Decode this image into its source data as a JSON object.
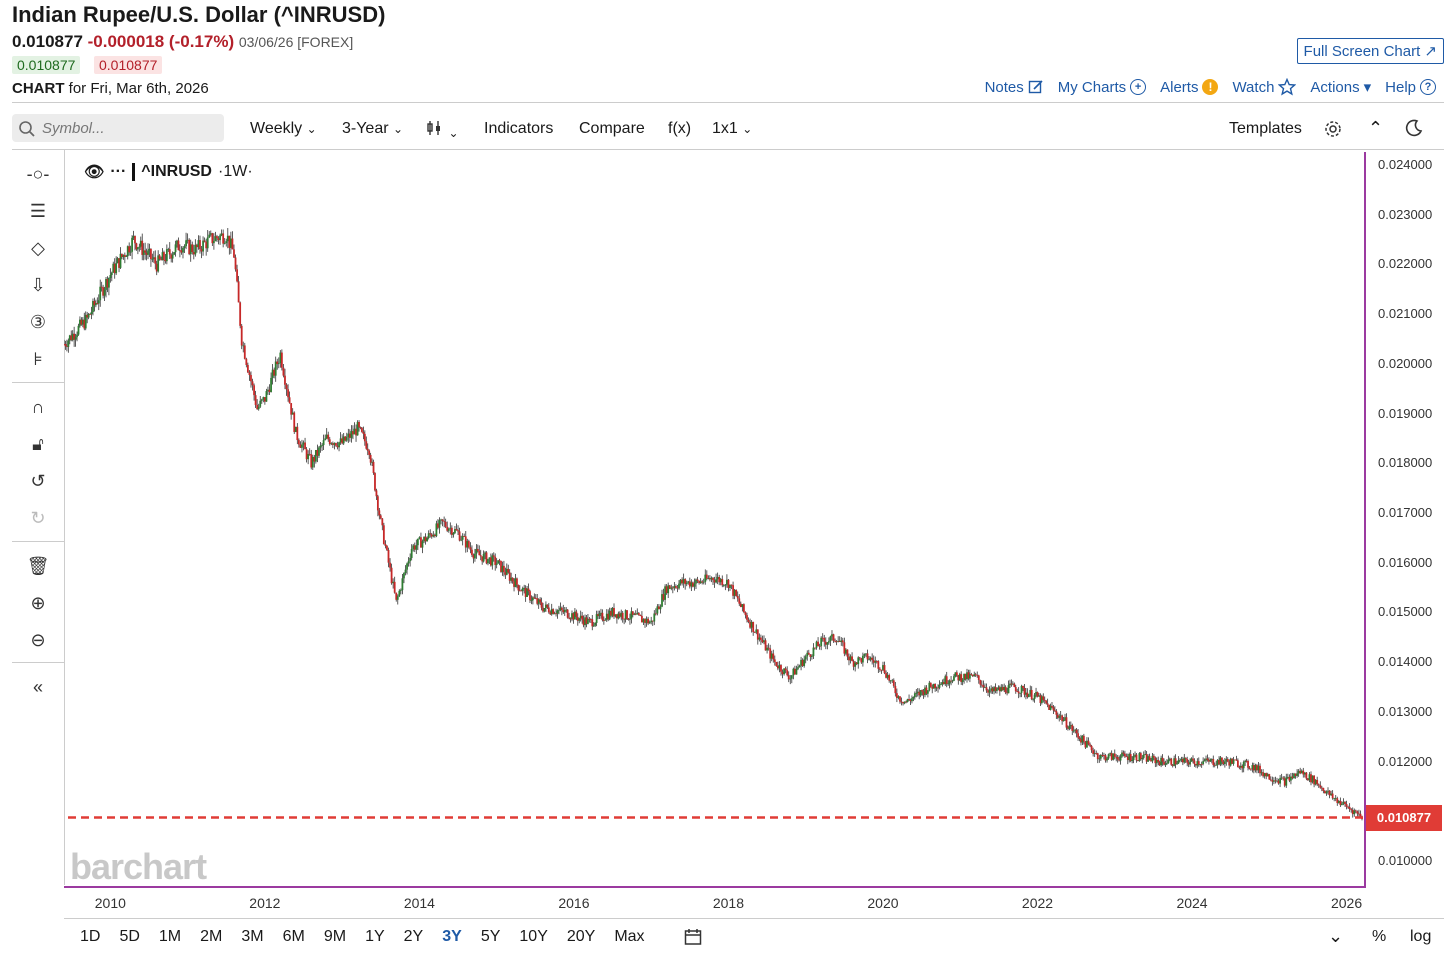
{
  "header": {
    "title": "Indian Rupee/U.S. Dollar (^INRUSD)",
    "last": "0.010877",
    "change": "-0.000018 (-0.17%)",
    "date": "03/06/26 [FOREX]",
    "bid": "0.010877",
    "ask": "0.010877",
    "chart_label": "CHART",
    "chart_for": "for Fri, Mar 6th, 2026",
    "full_screen": "Full Screen Chart"
  },
  "top_links": {
    "notes": "Notes",
    "my_charts": "My Charts",
    "alerts": "Alerts",
    "watch": "Watch",
    "actions": "Actions",
    "help": "Help"
  },
  "toolbar": {
    "search_placeholder": "Symbol...",
    "interval": "Weekly",
    "period": "3-Year",
    "indicators": "Indicators",
    "compare": "Compare",
    "fx": "f(x)",
    "layout": "1x1",
    "templates": "Templates"
  },
  "legend": {
    "symbol": "^INRUSD",
    "interval": "·1W·",
    "dots": "···"
  },
  "watermark": "barchart",
  "last_price_label": "0.010877",
  "ranges": [
    "1D",
    "5D",
    "1M",
    "2M",
    "3M",
    "6M",
    "9M",
    "1Y",
    "2Y",
    "3Y",
    "5Y",
    "10Y",
    "20Y",
    "Max"
  ],
  "active_range": "3Y",
  "bottom_right": {
    "percent": "%",
    "log": "log"
  },
  "colors": {
    "up": "#2e7d32",
    "down": "#c62828",
    "accent": "#1f5aa6",
    "last_line": "#e03c36",
    "axis_border": "#9b3aa0"
  },
  "chart_data": {
    "type": "line",
    "style": "candlestick",
    "symbol": "^INRUSD",
    "ylim": [
      0.0095,
      0.0243
    ],
    "y_ticks": [
      "0.024000",
      "0.023000",
      "0.022000",
      "0.021000",
      "0.020000",
      "0.019000",
      "0.018000",
      "0.017000",
      "0.016000",
      "0.015000",
      "0.014000",
      "0.013000",
      "0.012000",
      "0.010000"
    ],
    "x_ticks": [
      "2010",
      "2012",
      "2014",
      "2016",
      "2018",
      "2020",
      "2022",
      "2024",
      "2026"
    ],
    "xlim": [
      2009.4,
      2026.2
    ],
    "last_value": 0.010877,
    "series": [
      {
        "x": [
          2009.4,
          2009.7,
          2010.0,
          2010.3,
          2010.6,
          2010.9,
          2011.1,
          2011.3,
          2011.5,
          2011.6,
          2011.7,
          2011.8,
          2011.9,
          2012.0,
          2012.2,
          2012.4,
          2012.6,
          2012.8,
          2013.0,
          2013.2,
          2013.35,
          2013.5,
          2013.6,
          2013.7,
          2013.9,
          2014.1,
          2014.3,
          2014.5,
          2014.7,
          2015.0,
          2015.3,
          2015.6,
          2015.9,
          2016.2,
          2016.5,
          2016.8,
          2017.0,
          2017.2,
          2017.4,
          2017.6,
          2017.8,
          2018.0,
          2018.2,
          2018.4,
          2018.6,
          2018.8,
          2019.0,
          2019.2,
          2019.4,
          2019.6,
          2019.8,
          2020.0,
          2020.2,
          2020.3,
          2020.6,
          2020.9,
          2021.2,
          2021.4,
          2021.7,
          2022.0,
          2022.3,
          2022.6,
          2022.8,
          2023.0,
          2023.3,
          2023.6,
          2023.9,
          2024.2,
          2024.5,
          2024.8,
          2025.0,
          2025.2,
          2025.4,
          2025.6,
          2025.8,
          2026.0,
          2026.2
        ],
        "values": [
          0.0204,
          0.0209,
          0.0218,
          0.0225,
          0.022,
          0.0224,
          0.0223,
          0.0225,
          0.0226,
          0.0222,
          0.0205,
          0.0198,
          0.0191,
          0.0193,
          0.0202,
          0.0186,
          0.018,
          0.0185,
          0.0184,
          0.0187,
          0.0183,
          0.0168,
          0.016,
          0.0152,
          0.0163,
          0.0165,
          0.0168,
          0.0166,
          0.0162,
          0.016,
          0.0155,
          0.0151,
          0.015,
          0.0148,
          0.015,
          0.0149,
          0.0148,
          0.0155,
          0.0156,
          0.0156,
          0.0157,
          0.0156,
          0.015,
          0.0145,
          0.014,
          0.0137,
          0.0141,
          0.0144,
          0.0145,
          0.014,
          0.0141,
          0.0139,
          0.0133,
          0.0132,
          0.0135,
          0.0137,
          0.0137,
          0.0134,
          0.0135,
          0.0133,
          0.0129,
          0.0124,
          0.0121,
          0.0121,
          0.0121,
          0.012,
          0.012,
          0.012,
          0.012,
          0.0119,
          0.0117,
          0.0116,
          0.0118,
          0.0116,
          0.0113,
          0.0111,
          0.0109
        ]
      }
    ]
  }
}
